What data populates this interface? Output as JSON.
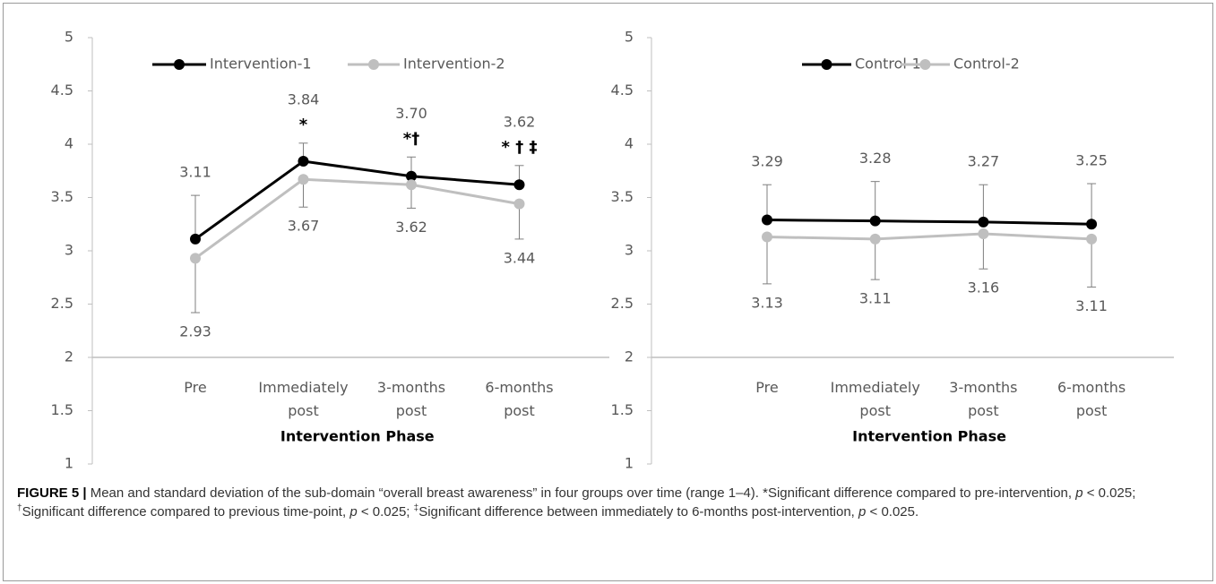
{
  "charts": [
    {
      "chart_data": {
        "type": "line",
        "xlabel": "Intervention Phase",
        "categories": [
          "Pre",
          "Immediately post",
          "3-months post",
          "6-months post"
        ],
        "series": [
          {
            "name": "Intervention-1",
            "color": "#000000",
            "values": [
              3.11,
              3.84,
              3.7,
              3.62
            ],
            "value_labels": [
              "3.11",
              "3.84",
              "3.70",
              "3.62"
            ],
            "errors": [
              0.41,
              0.17,
              0.18,
              0.18
            ],
            "error_direction": "up",
            "annotations": [
              null,
              "*",
              "*†",
              "* † ‡"
            ]
          },
          {
            "name": "Intervention-2",
            "color": "#bfbfbf",
            "values": [
              2.93,
              3.67,
              3.62,
              3.44
            ],
            "value_labels": [
              "2.93",
              "3.67",
              "3.62",
              "3.44"
            ],
            "errors": [
              0.51,
              0.26,
              0.22,
              0.33
            ],
            "error_direction": "down"
          }
        ],
        "ylim": [
          1,
          5
        ],
        "yticks": [
          1,
          1.5,
          2,
          2.5,
          3,
          3.5,
          4,
          4.5,
          5
        ],
        "xaxis_crosses": 2,
        "legend": "top",
        "grid": false
      }
    },
    {
      "chart_data": {
        "type": "line",
        "xlabel": "Intervention Phase",
        "categories": [
          "Pre",
          "Immediately post",
          "3-months post",
          "6-months post"
        ],
        "series": [
          {
            "name": "Control-1",
            "color": "#000000",
            "values": [
              3.29,
              3.28,
              3.27,
              3.25
            ],
            "errors": [
              0.33,
              0.37,
              0.35,
              0.38
            ],
            "error_direction": "up"
          },
          {
            "name": "Control-2",
            "color": "#bfbfbf",
            "values": [
              3.13,
              3.11,
              3.16,
              3.11
            ],
            "errors": [
              0.44,
              0.38,
              0.33,
              0.45
            ],
            "error_direction": "down"
          }
        ],
        "ylim": [
          1,
          5
        ],
        "yticks": [
          1,
          1.5,
          2,
          2.5,
          3,
          3.5,
          4,
          4.5,
          5
        ],
        "xaxis_crosses": 2,
        "legend": "top",
        "grid": false
      }
    }
  ],
  "caption": {
    "label": "FIGURE 5 |",
    "segments": [
      {
        "text": " Mean and standard deviation of the sub-domain “overall breast awareness” in four groups over time (range 1–4). *Significant difference compared to pre-intervention, ",
        "style": "normal"
      },
      {
        "text": "p",
        "style": "italic"
      },
      {
        "text": " < 0.025; ",
        "style": "normal"
      },
      {
        "text": "†",
        "style": "sup"
      },
      {
        "text": "Significant difference compared to previous time-point, ",
        "style": "normal"
      },
      {
        "text": "p",
        "style": "italic"
      },
      {
        "text": " < 0.025; ",
        "style": "normal"
      },
      {
        "text": "‡",
        "style": "sup"
      },
      {
        "text": "Significant difference between immediately to 6-months post-intervention, ",
        "style": "normal"
      },
      {
        "text": "p",
        "style": "italic"
      },
      {
        "text": " < 0.025.",
        "style": "normal"
      }
    ]
  }
}
